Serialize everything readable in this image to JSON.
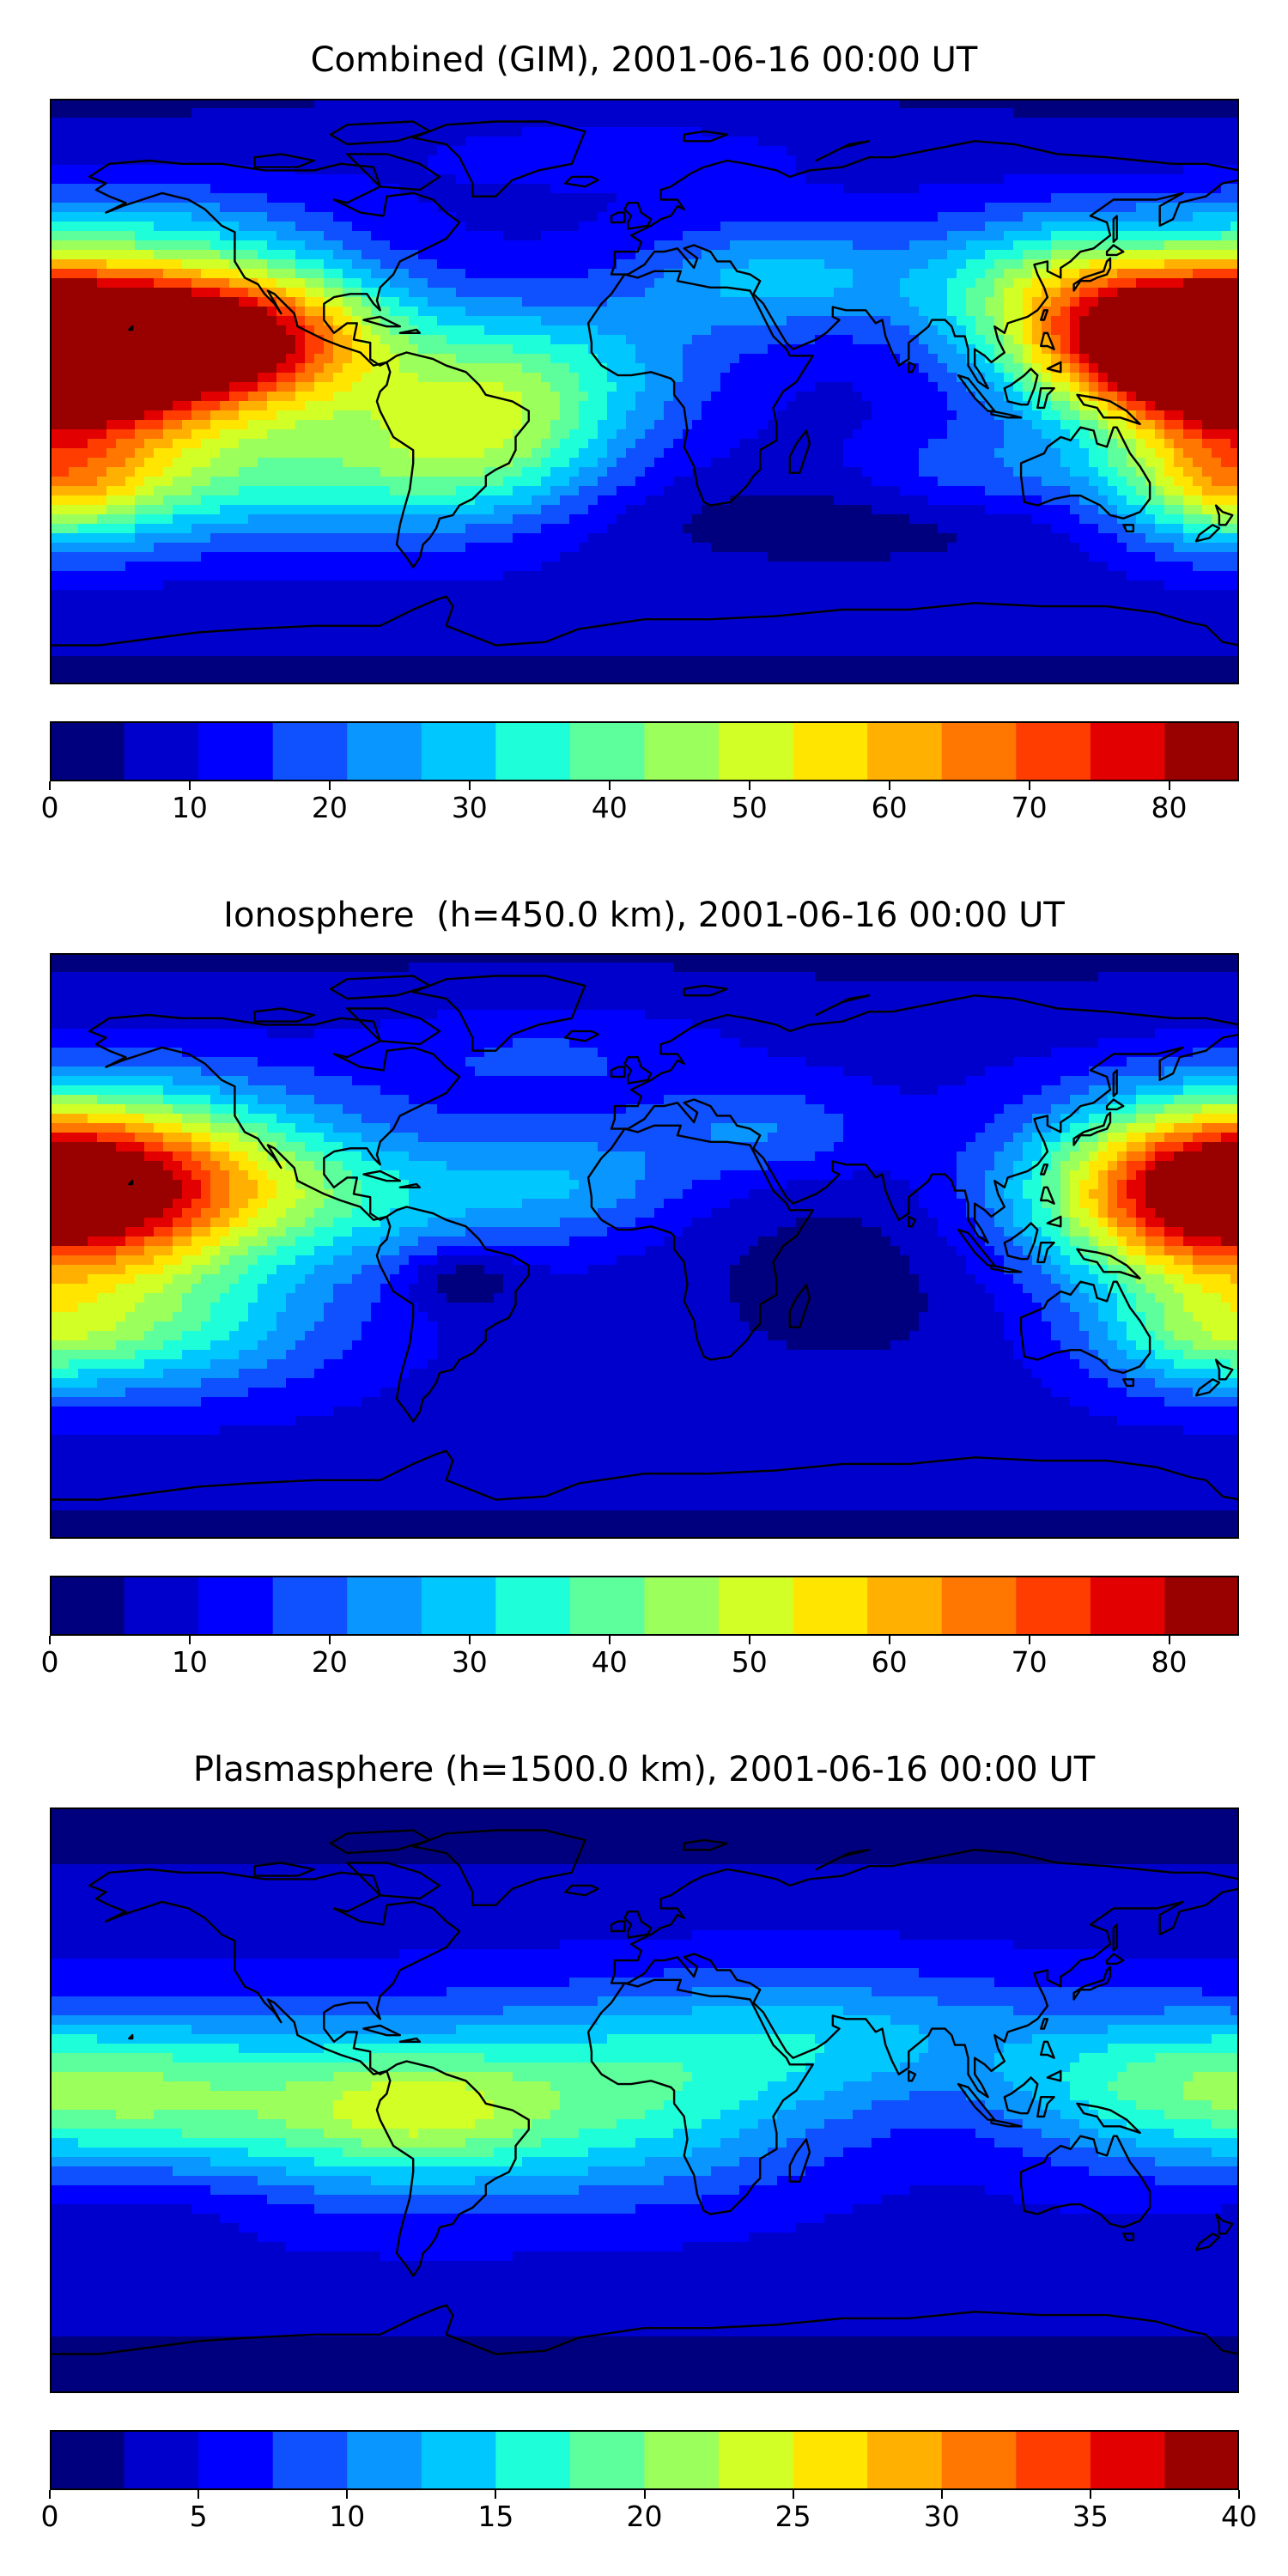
{
  "palette": [
    "#00007f",
    "#0000cd",
    "#0000ff",
    "#0f50ff",
    "#0a96ff",
    "#00c8ff",
    "#1effd9",
    "#5cff9b",
    "#9bff5c",
    "#d2ff25",
    "#ffe500",
    "#ffb000",
    "#ff7600",
    "#ff3d00",
    "#e30000",
    "#990000"
  ],
  "coastline_color": "#000000",
  "panels": [
    {
      "id": "combined",
      "title": "Combined (GIM), 2001-06-16 00:00 UT",
      "colorbar": {
        "min": 0,
        "max": 85,
        "step": 5,
        "ticks": [
          "0",
          "10",
          "20",
          "30",
          "40",
          "50",
          "60",
          "70",
          "80"
        ],
        "tick_values": [
          0,
          10,
          20,
          30,
          40,
          50,
          60,
          70,
          80
        ]
      },
      "field": {
        "base": 8,
        "poleDrop": 4,
        "blobs": [
          {
            "lon": -155,
            "lat": 15,
            "amp": 70,
            "slon": 45,
            "slat": 17
          },
          {
            "lon": -112,
            "lat": 18,
            "amp": 22,
            "slon": 25,
            "slat": 15
          },
          {
            "lon": -48,
            "lat": -8,
            "amp": 32,
            "slon": 30,
            "slat": 20
          },
          {
            "lon": -95,
            "lat": -25,
            "amp": 18,
            "slon": 40,
            "slat": 15
          },
          {
            "lon": -165,
            "lat": -25,
            "amp": 22,
            "slon": 35,
            "slat": 15
          },
          {
            "lon": -155,
            "lat": 50,
            "amp": 12,
            "slon": 40,
            "slat": 12
          },
          {
            "lon": 170,
            "lat": 12,
            "amp": 68,
            "slon": 35,
            "slat": 16
          },
          {
            "lon": 125,
            "lat": 33,
            "amp": 26,
            "slon": 30,
            "slat": 15
          },
          {
            "lon": 40,
            "lat": 35,
            "amp": 18,
            "slon": 30,
            "slat": 12
          },
          {
            "lon": -10,
            "lat": 10,
            "amp": 10,
            "slon": 30,
            "slat": 15
          },
          {
            "lon": 100,
            "lat": -25,
            "amp": 10,
            "slon": 25,
            "slat": 10
          },
          {
            "lon": 175,
            "lat": -28,
            "amp": 28,
            "slon": 25,
            "slat": 14
          },
          {
            "lon": -10,
            "lat": 75,
            "amp": 6,
            "slon": 60,
            "slat": 10
          },
          {
            "lon": 60,
            "lat": -40,
            "amp": -6,
            "slon": 60,
            "slat": 10
          }
        ]
      }
    },
    {
      "id": "ionosphere",
      "title": "Ionosphere  (h=450.0 km), 2001-06-16 00:00 UT",
      "colorbar": {
        "min": 0,
        "max": 85,
        "step": 5,
        "ticks": [
          "0",
          "10",
          "20",
          "30",
          "40",
          "50",
          "60",
          "70",
          "80"
        ],
        "tick_values": [
          0,
          10,
          20,
          30,
          40,
          50,
          60,
          70,
          80
        ]
      },
      "field": {
        "base": 8,
        "poleDrop": 4,
        "blobs": [
          {
            "lon": -160,
            "lat": 20,
            "amp": 50,
            "slon": 45,
            "slat": 20
          },
          {
            "lon": 170,
            "lat": 15,
            "amp": 47,
            "slon": 35,
            "slat": 18
          },
          {
            "lon": -55,
            "lat": -10,
            "amp": -10,
            "slon": 12,
            "slat": 7
          },
          {
            "lon": -80,
            "lat": 15,
            "amp": 14,
            "slon": 40,
            "slat": 14
          },
          {
            "lon": -20,
            "lat": 20,
            "amp": 12,
            "slon": 25,
            "slat": 12
          },
          {
            "lon": 35,
            "lat": 35,
            "amp": 12,
            "slon": 25,
            "slat": 10
          },
          {
            "lon": -150,
            "lat": -25,
            "amp": 22,
            "slon": 40,
            "slat": 15
          },
          {
            "lon": 170,
            "lat": -28,
            "amp": 18,
            "slon": 25,
            "slat": 12
          },
          {
            "lon": 60,
            "lat": -10,
            "amp": -6,
            "slon": 30,
            "slat": 20
          },
          {
            "lon": -30,
            "lat": 60,
            "amp": 8,
            "slon": 40,
            "slat": 12
          }
        ]
      }
    },
    {
      "id": "plasmasphere",
      "title": "Plasmasphere (h=1500.0 km), 2001-06-16 00:00 UT",
      "colorbar": {
        "min": 0,
        "max": 40,
        "step": 2.5,
        "ticks": [
          "0",
          "5",
          "10",
          "15",
          "20",
          "25",
          "30",
          "35",
          "40"
        ],
        "tick_values": [
          0,
          5,
          10,
          15,
          20,
          25,
          30,
          35,
          40
        ]
      },
      "field": {
        "base": 4,
        "poleDrop": 3,
        "blobs": [
          {
            "lon": -90,
            "lat": -2,
            "amp": 14,
            "slon": 80,
            "slat": 20
          },
          {
            "lon": -70,
            "lat": -3,
            "amp": 6,
            "slon": 25,
            "slat": 12
          },
          {
            "lon": -160,
            "lat": 5,
            "amp": 6,
            "slon": 30,
            "slat": 15
          },
          {
            "lon": 60,
            "lat": 20,
            "amp": 8,
            "slon": 50,
            "slat": 15
          },
          {
            "lon": 150,
            "lat": 5,
            "amp": 8,
            "slon": 30,
            "slat": 15
          },
          {
            "lon": 0,
            "lat": 0,
            "amp": 5,
            "slon": 40,
            "slat": 20
          },
          {
            "lon": -150,
            "lat": -30,
            "amp": -3,
            "slon": 30,
            "slat": 10
          }
        ]
      }
    }
  ]
}
